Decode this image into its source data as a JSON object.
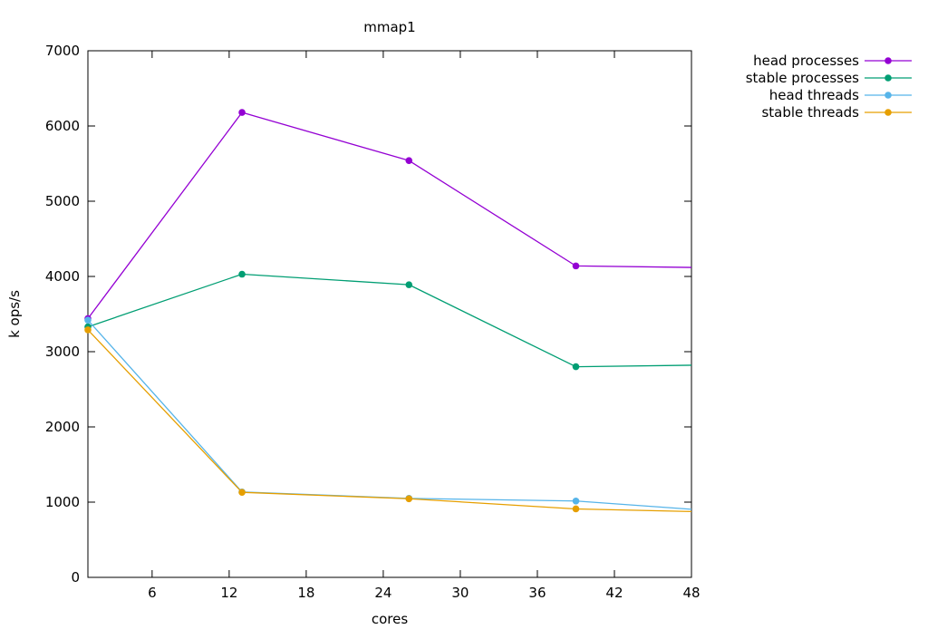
{
  "chart_data": {
    "type": "line",
    "title": "mmap1",
    "xlabel": "cores",
    "ylabel": "k ops/s",
    "xlim": [
      1,
      48
    ],
    "ylim": [
      0,
      7000
    ],
    "xticks": [
      6,
      12,
      18,
      24,
      30,
      36,
      42,
      48
    ],
    "yticks": [
      0,
      1000,
      2000,
      3000,
      4000,
      5000,
      6000,
      7000
    ],
    "grid": false,
    "legend_position": "outside-top-right",
    "marker": "filled-circle",
    "x": [
      1,
      13,
      26,
      39,
      48
    ],
    "series": [
      {
        "name": "head processes",
        "color": "#9400d3",
        "values": [
          3440,
          6180,
          5540,
          4140,
          4120
        ]
      },
      {
        "name": "stable processes",
        "color": "#009e73",
        "values": [
          3330,
          4030,
          3890,
          2800,
          2820
        ]
      },
      {
        "name": "head threads",
        "color": "#56b4e9",
        "values": [
          3420,
          1135,
          1050,
          1015,
          905
        ]
      },
      {
        "name": "stable threads",
        "color": "#e69f00",
        "values": [
          3290,
          1130,
          1045,
          910,
          875
        ]
      }
    ]
  }
}
